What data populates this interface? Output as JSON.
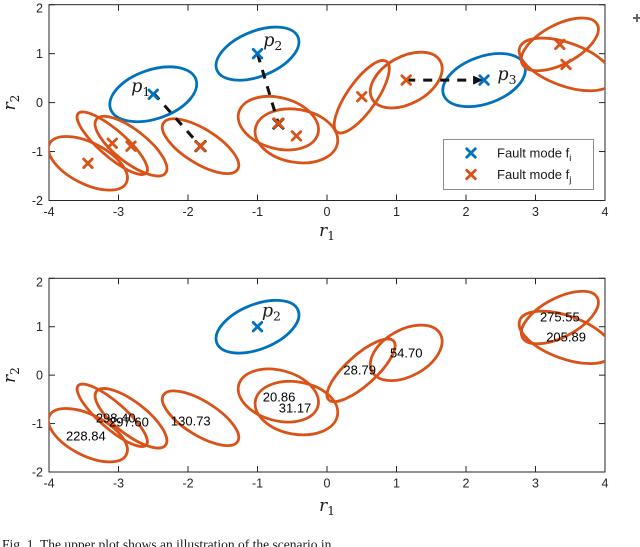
{
  "colors": {
    "fault_i_blue": "#0072BD",
    "fault_j_orange": "#D95319",
    "dash_line": "#111111",
    "axis": "#262626",
    "legend_border": "#8c8c8c",
    "text": "#1a1a1a"
  },
  "caption": {
    "text": "Fig. 1. The upper plot shows an illustration of the scenario in"
  },
  "chart_data": [
    {
      "id": "top",
      "type": "scatter",
      "xlabel": {
        "base": "r",
        "sub": "1"
      },
      "ylabel": {
        "base": "r",
        "sub": "2"
      },
      "xlim": [
        -4,
        4
      ],
      "ylim": [
        -2,
        2
      ],
      "xticks": [
        "-4",
        "-3",
        "-2",
        "-1",
        "0",
        "1",
        "2",
        "3",
        "4"
      ],
      "yticks": [
        "-2",
        "-1",
        "0",
        "1",
        "2"
      ],
      "grid": false,
      "legend": {
        "position": "lower-right",
        "entries": [
          {
            "marker": "x",
            "color": "blue",
            "label": "Fault mode f",
            "sub": "i"
          },
          {
            "marker": "x",
            "color": "orange",
            "label": "Fault mode f",
            "sub": "j"
          }
        ]
      },
      "ellipses": [
        {
          "color": "blue",
          "cx": -2.5,
          "cy": 0.17,
          "a": 0.65,
          "b": 0.5,
          "rot": -19,
          "marker": true
        },
        {
          "color": "blue",
          "cx": -1.0,
          "cy": 1.0,
          "a": 0.63,
          "b": 0.46,
          "rot": -22,
          "marker": true
        },
        {
          "color": "blue",
          "cx": 2.26,
          "cy": 0.46,
          "a": 0.62,
          "b": 0.48,
          "rot": -20,
          "marker": true
        },
        {
          "color": "orange",
          "cx": -3.44,
          "cy": -1.24,
          "a": 0.62,
          "b": 0.42,
          "rot": 27,
          "marker": true
        },
        {
          "color": "orange",
          "cx": -3.09,
          "cy": -0.83,
          "a": 0.65,
          "b": 0.27,
          "rot": 41,
          "marker": true
        },
        {
          "color": "orange",
          "cx": -2.82,
          "cy": -0.89,
          "a": 0.63,
          "b": 0.33,
          "rot": 38,
          "marker": true
        },
        {
          "color": "orange",
          "cx": -1.82,
          "cy": -0.89,
          "a": 0.63,
          "b": 0.35,
          "rot": 32,
          "marker": true
        },
        {
          "color": "orange",
          "cx": -0.7,
          "cy": -0.42,
          "a": 0.59,
          "b": 0.52,
          "rot": 15,
          "marker": true
        },
        {
          "color": "orange",
          "cx": -0.44,
          "cy": -0.68,
          "a": 0.6,
          "b": 0.54,
          "rot": 10,
          "marker": true
        },
        {
          "color": "orange",
          "cx": 0.5,
          "cy": 0.12,
          "a": 0.62,
          "b": 0.3,
          "rot": -55,
          "marker": true
        },
        {
          "color": "orange",
          "cx": 1.14,
          "cy": 0.46,
          "a": 0.56,
          "b": 0.48,
          "rot": -29,
          "marker": true
        },
        {
          "color": "orange",
          "cx": 3.35,
          "cy": 1.19,
          "a": 0.61,
          "b": 0.4,
          "rot": -28,
          "marker": true
        },
        {
          "color": "orange",
          "cx": 3.44,
          "cy": 0.78,
          "a": 0.71,
          "b": 0.44,
          "rot": 20,
          "marker": true
        }
      ],
      "dashed_lines": [
        {
          "x1": -2.5,
          "y1": 0.2,
          "x2": -1.82,
          "y2": -0.89,
          "end": "x"
        },
        {
          "x1": -1.0,
          "y1": 1.0,
          "x2": -0.7,
          "y2": -0.43,
          "end": "x"
        },
        {
          "x1": 1.14,
          "y1": 0.46,
          "x2": 2.26,
          "y2": 0.46,
          "end": "arrow"
        }
      ],
      "point_labels": [
        {
          "base": "p",
          "sub": "1",
          "x": -2.68,
          "y": 0.32
        },
        {
          "base": "p",
          "sub": "2",
          "x": -0.78,
          "y": 1.26
        },
        {
          "base": "p",
          "sub": "3",
          "x": 2.59,
          "y": 0.56
        }
      ]
    },
    {
      "id": "bottom",
      "type": "scatter",
      "xlabel": {
        "base": "r",
        "sub": "1"
      },
      "ylabel": {
        "base": "r",
        "sub": "2"
      },
      "xlim": [
        -4,
        4
      ],
      "ylim": [
        -2,
        2
      ],
      "xticks": [
        "-4",
        "-3",
        "-2",
        "-1",
        "0",
        "1",
        "2",
        "3",
        "4"
      ],
      "yticks": [
        "-2",
        "-1",
        "0",
        "1",
        "2"
      ],
      "grid": false,
      "legend": null,
      "ellipses": [
        {
          "color": "blue",
          "cx": -1.0,
          "cy": 1.0,
          "a": 0.63,
          "b": 0.46,
          "rot": -22,
          "marker": true
        },
        {
          "color": "orange",
          "cx": -3.44,
          "cy": -1.24,
          "a": 0.62,
          "b": 0.42,
          "rot": 27,
          "value": "228.84",
          "vx": -3.47,
          "vy": -1.26
        },
        {
          "color": "orange",
          "cx": -3.09,
          "cy": -0.83,
          "a": 0.65,
          "b": 0.27,
          "rot": 41,
          "value": "298.40",
          "vx": -3.04,
          "vy": -0.88
        },
        {
          "color": "orange",
          "cx": -2.82,
          "cy": -0.89,
          "a": 0.63,
          "b": 0.33,
          "rot": 38,
          "value": "297.60",
          "vx": -2.85,
          "vy": -0.97
        },
        {
          "color": "orange",
          "cx": -1.82,
          "cy": -0.89,
          "a": 0.63,
          "b": 0.35,
          "rot": 32,
          "value": "130.73",
          "vx": -1.96,
          "vy": -0.95
        },
        {
          "color": "orange",
          "cx": -0.7,
          "cy": -0.42,
          "a": 0.59,
          "b": 0.52,
          "rot": 15,
          "value": "20.86",
          "vx": -0.69,
          "vy": -0.45
        },
        {
          "color": "orange",
          "cx": -0.44,
          "cy": -0.68,
          "a": 0.6,
          "b": 0.54,
          "rot": 10,
          "value": "31.17",
          "vx": -0.46,
          "vy": -0.68
        },
        {
          "color": "orange",
          "cx": 0.49,
          "cy": 0.1,
          "a": 0.63,
          "b": 0.31,
          "rot": -42,
          "value": "28.79",
          "vx": 0.47,
          "vy": 0.11
        },
        {
          "color": "orange",
          "cx": 1.14,
          "cy": 0.46,
          "a": 0.56,
          "b": 0.48,
          "rot": -29,
          "value": "54.70",
          "vx": 1.14,
          "vy": 0.46
        },
        {
          "color": "orange",
          "cx": 3.35,
          "cy": 1.19,
          "a": 0.61,
          "b": 0.4,
          "rot": -28,
          "value": "275.55",
          "vx": 3.35,
          "vy": 1.2
        },
        {
          "color": "orange",
          "cx": 3.44,
          "cy": 0.78,
          "a": 0.71,
          "b": 0.44,
          "rot": 20,
          "value": "205.89",
          "vx": 3.44,
          "vy": 0.79
        }
      ],
      "dashed_lines": [],
      "point_labels": [
        {
          "base": "p",
          "sub": "2",
          "x": -0.8,
          "y": 1.31
        }
      ]
    }
  ]
}
